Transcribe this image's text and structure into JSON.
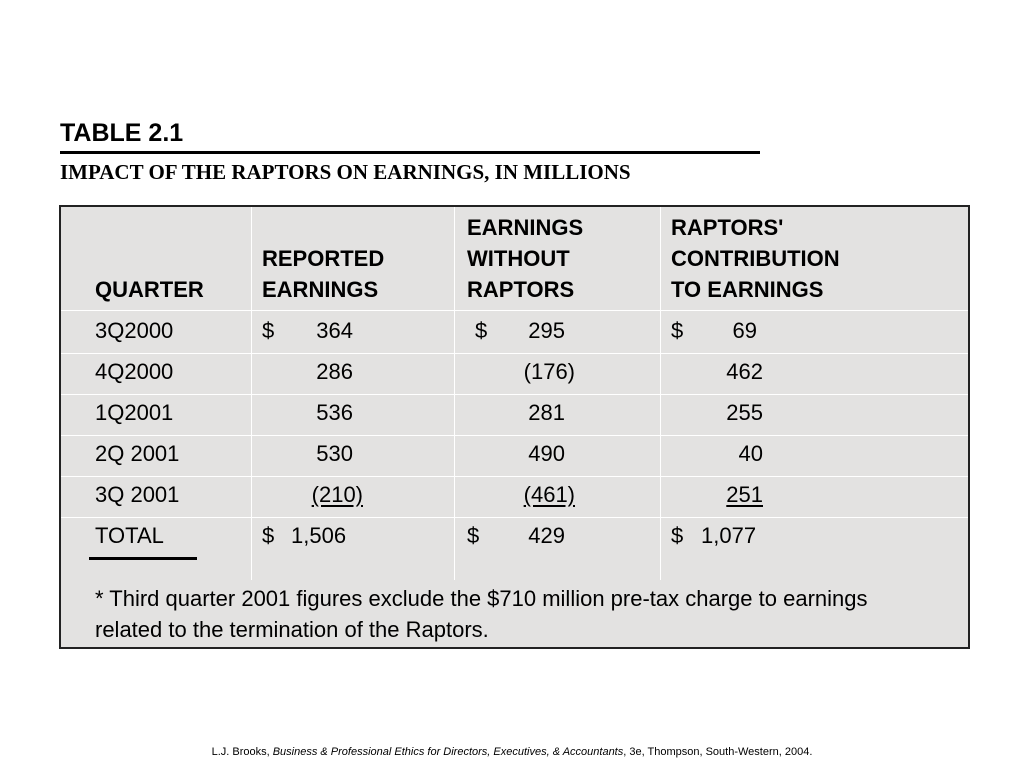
{
  "title": "TABLE 2.1",
  "subtitle": "IMPACT OF THE RAPTORS ON EARNINGS, IN MILLIONS",
  "headers": {
    "quarter": "QUARTER",
    "reported_1": "REPORTED",
    "reported_2": "EARNINGS",
    "without_1": "EARNINGS",
    "without_2": "WITHOUT",
    "without_3": "RAPTORS",
    "contrib_1": "RAPTORS'",
    "contrib_2": "CONTRIBUTION",
    "contrib_3": "TO EARNINGS"
  },
  "rows": [
    {
      "quarter": "3Q2000",
      "reported_cur": "$",
      "reported": "364",
      "without_cur": "$",
      "without": "295",
      "contrib_cur": "$",
      "contrib": "69"
    },
    {
      "quarter": "4Q2000",
      "reported_cur": "",
      "reported": "286",
      "without_cur": "",
      "without": "(176)",
      "contrib_cur": "",
      "contrib": "462"
    },
    {
      "quarter": "1Q2001",
      "reported_cur": "",
      "reported": "536",
      "without_cur": "",
      "without": "281",
      "contrib_cur": "",
      "contrib": "255"
    },
    {
      "quarter": "2Q 2001",
      "reported_cur": "",
      "reported": "530",
      "without_cur": "",
      "without": "490",
      "contrib_cur": "",
      "contrib": "40"
    },
    {
      "quarter": "3Q 2001",
      "reported_cur": "",
      "reported": "(210)",
      "without_cur": "",
      "without": "(461)",
      "contrib_cur": "",
      "contrib": "251"
    },
    {
      "quarter": "TOTAL",
      "reported_cur": "$",
      "reported": "1,506",
      "without_cur": "$",
      "without": "429",
      "contrib_cur": "$",
      "contrib": "1,077"
    }
  ],
  "footnote": "* Third quarter 2001 figures exclude the $710 million pre-tax charge to earnings related to the termination of the Raptors.",
  "citation": {
    "author": "L.J. Brooks, ",
    "book": "Business & Professional Ethics for Directors, Executives, & Accountants",
    "rest": ", 3e, Thompson, South-Western, 2004."
  }
}
